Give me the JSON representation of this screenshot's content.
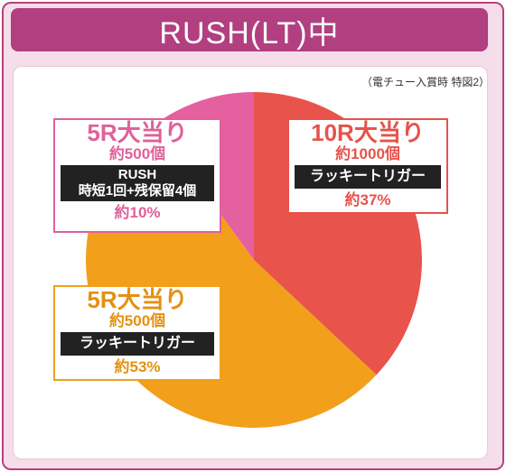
{
  "title": "RUSH(LT)中",
  "note": "（電チュー入賞時 特図2）",
  "chart_data": {
    "type": "pie",
    "title": "RUSH(LT)中",
    "slices": [
      {
        "name": "10R大当り",
        "value": 37,
        "color": "#e8534b"
      },
      {
        "name": "5R大当り",
        "value": 53,
        "color": "#f29f1c"
      },
      {
        "name": "5R大当り",
        "value": 10,
        "color": "#e5609e"
      }
    ],
    "start_angle_deg": 0
  },
  "labels": {
    "r10": {
      "name": "10R大当り",
      "prize": "約1000個",
      "box": "ラッキートリガー",
      "pct": "約37%"
    },
    "r5_rush": {
      "name": "5R大当り",
      "prize": "約500個",
      "box1": "RUSH",
      "box2": "時短1回+残保留4個",
      "pct": "約10%"
    },
    "r5_lucky": {
      "name": "5R大当り",
      "prize": "約500個",
      "box": "ラッキートリガー",
      "pct": "約53%"
    }
  }
}
